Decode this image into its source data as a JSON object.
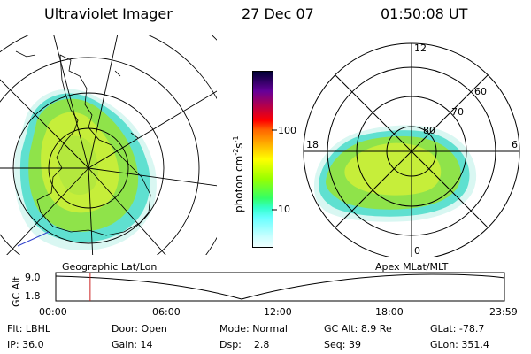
{
  "header": {
    "instrument": "Ultraviolet Imager",
    "date": "27 Dec 07",
    "time": "01:50:08 UT"
  },
  "geo_panel": {
    "label": "Geographic Lat/Lon"
  },
  "mag_panel": {
    "label": "Apex MLat/MLT",
    "lat_labels": [
      "80",
      "70",
      "60"
    ],
    "mlt_labels": {
      "top": "12",
      "left": "18",
      "right": "6",
      "bottom": "0"
    }
  },
  "colorbar": {
    "unit_label": "photon cm",
    "unit_exp1": "-2",
    "unit_mid": "s",
    "unit_exp2": "-1",
    "ticks": [
      "100",
      "10"
    ],
    "colors": [
      "#000033",
      "#330066",
      "#660099",
      "#990066",
      "#cc0033",
      "#ff0000",
      "#ff6600",
      "#ff9900",
      "#ffcc00",
      "#ffff00",
      "#ccff00",
      "#99ff00",
      "#66ff33",
      "#33ff66",
      "#33ffcc",
      "#66ffff",
      "#99ffff",
      "#ccffff",
      "#eeffff"
    ]
  },
  "altitude_plot": {
    "ylabel": "GC Alt",
    "y_ticks": [
      "9.0",
      "1.8"
    ],
    "x_ticks": [
      "00:00",
      "06:00",
      "12:00",
      "18:00",
      "23:59"
    ],
    "current_time_marker_hours": 1.84
  },
  "info": {
    "filter": {
      "label": "Flt:",
      "value": "LBHL"
    },
    "ip": {
      "label": "IP:",
      "value": "36.0"
    },
    "door": {
      "label": "Door:",
      "value": "Open"
    },
    "gain": {
      "label": "Gain:",
      "value": "14"
    },
    "mode": {
      "label": "Mode:",
      "value": "Normal"
    },
    "dsp": {
      "label": "Dsp:",
      "value": "2.8"
    },
    "gc_alt": {
      "label": "GC Alt:",
      "value": "8.9 Re"
    },
    "seq": {
      "label": "Seq:",
      "value": "39"
    },
    "glat": {
      "label": "GLat:",
      "value": "-78.7"
    },
    "glon": {
      "label": "GLon:",
      "value": "351.4"
    }
  }
}
